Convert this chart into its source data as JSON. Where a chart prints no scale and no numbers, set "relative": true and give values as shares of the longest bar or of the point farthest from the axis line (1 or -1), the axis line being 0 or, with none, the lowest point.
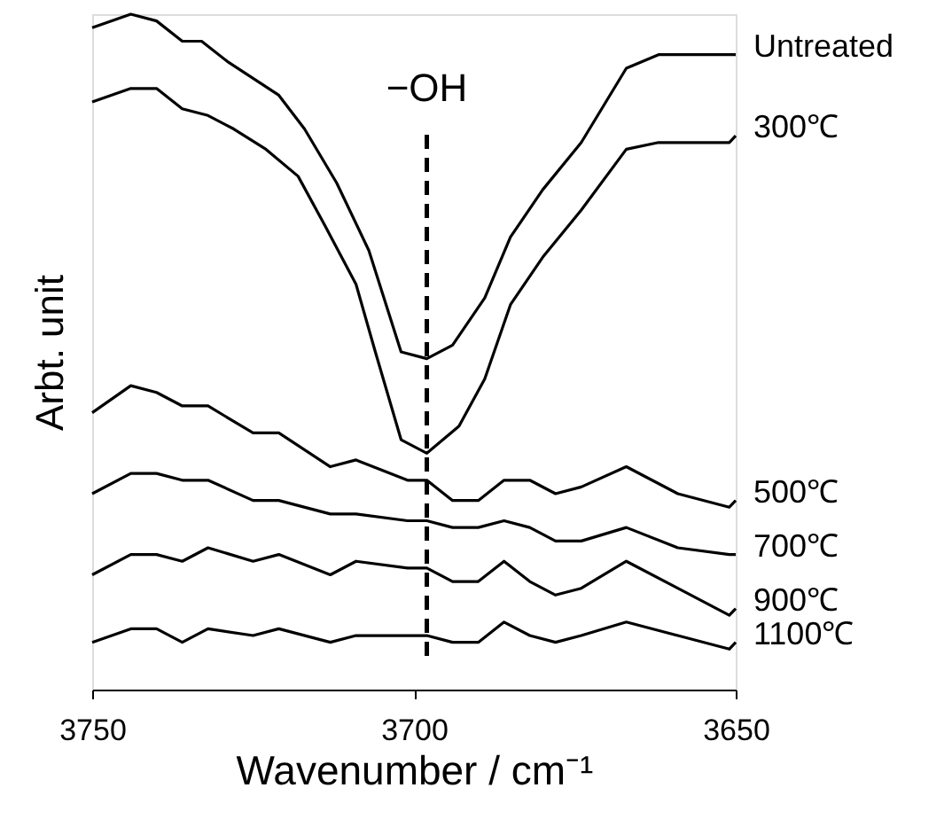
{
  "chart_data": {
    "type": "line",
    "relative": true,
    "xlabel": "Wavenumber / cm⁻¹",
    "ylabel": "Arbt. unit",
    "xlim": [
      3750,
      3650
    ],
    "xticks": [
      3750,
      3700,
      3650
    ],
    "grid": false,
    "marker": "none",
    "line_style": "solid",
    "series": [
      {
        "name": "Untreated",
        "color": "#000000",
        "x": [
          3750,
          3744,
          3740,
          3736,
          3733,
          3729,
          3721,
          3717,
          3712,
          3707,
          3702,
          3698,
          3694,
          3689,
          3685,
          3680,
          3674,
          3667,
          3662,
          3657,
          3651,
          3650
        ],
        "values": [
          0.98,
          1.0,
          0.99,
          0.96,
          0.96,
          0.93,
          0.88,
          0.83,
          0.75,
          0.65,
          0.5,
          0.49,
          0.51,
          0.58,
          0.67,
          0.74,
          0.81,
          0.92,
          0.94,
          0.94,
          0.94,
          0.94
        ]
      },
      {
        "name": "300℃",
        "color": "#000000",
        "x": [
          3750,
          3744,
          3740,
          3736,
          3732,
          3728,
          3723,
          3718,
          3714,
          3709,
          3706,
          3702,
          3698,
          3693,
          3689,
          3685,
          3680,
          3674,
          3667,
          3662,
          3651,
          3650
        ],
        "values": [
          0.87,
          0.89,
          0.89,
          0.86,
          0.85,
          0.83,
          0.8,
          0.76,
          0.69,
          0.6,
          0.5,
          0.37,
          0.35,
          0.39,
          0.46,
          0.57,
          0.64,
          0.71,
          0.8,
          0.81,
          0.81,
          0.82
        ]
      },
      {
        "name": "500℃",
        "color": "#000000",
        "x": [
          3750,
          3744,
          3740,
          3736,
          3732,
          3725,
          3721,
          3713,
          3709,
          3701,
          3698,
          3694,
          3690,
          3686,
          3682,
          3678,
          3674,
          3667,
          3659,
          3651,
          3650
        ],
        "values": [
          0.41,
          0.45,
          0.44,
          0.42,
          0.42,
          0.38,
          0.38,
          0.33,
          0.34,
          0.31,
          0.31,
          0.28,
          0.28,
          0.31,
          0.31,
          0.29,
          0.3,
          0.33,
          0.29,
          0.27,
          0.28
        ]
      },
      {
        "name": "700℃",
        "color": "#000000",
        "x": [
          3750,
          3744,
          3740,
          3736,
          3732,
          3725,
          3721,
          3713,
          3709,
          3701,
          3698,
          3694,
          3690,
          3686,
          3682,
          3678,
          3674,
          3667,
          3659,
          3651,
          3650
        ],
        "values": [
          0.29,
          0.32,
          0.32,
          0.31,
          0.31,
          0.28,
          0.28,
          0.26,
          0.26,
          0.25,
          0.25,
          0.24,
          0.24,
          0.25,
          0.24,
          0.22,
          0.22,
          0.24,
          0.21,
          0.2,
          0.2
        ]
      },
      {
        "name": "900℃",
        "color": "#000000",
        "x": [
          3750,
          3744,
          3740,
          3736,
          3732,
          3725,
          3721,
          3713,
          3709,
          3701,
          3698,
          3694,
          3690,
          3686,
          3682,
          3678,
          3674,
          3667,
          3659,
          3651,
          3650
        ],
        "values": [
          0.17,
          0.2,
          0.2,
          0.19,
          0.21,
          0.19,
          0.2,
          0.17,
          0.19,
          0.18,
          0.18,
          0.16,
          0.16,
          0.19,
          0.16,
          0.14,
          0.15,
          0.19,
          0.15,
          0.11,
          0.12
        ]
      },
      {
        "name": "1100℃",
        "color": "#000000",
        "x": [
          3750,
          3744,
          3740,
          3736,
          3732,
          3725,
          3721,
          3713,
          3709,
          3701,
          3698,
          3694,
          3690,
          3686,
          3682,
          3678,
          3674,
          3667,
          3659,
          3651,
          3650
        ],
        "values": [
          0.07,
          0.09,
          0.09,
          0.07,
          0.09,
          0.08,
          0.09,
          0.07,
          0.08,
          0.08,
          0.08,
          0.07,
          0.07,
          0.1,
          0.08,
          0.07,
          0.08,
          0.1,
          0.08,
          0.06,
          0.07
        ]
      }
    ],
    "ref_lines": [
      {
        "axis": "x",
        "value": 3698,
        "label": "−OH",
        "line_style": "dashed",
        "color": "#000000"
      }
    ]
  }
}
